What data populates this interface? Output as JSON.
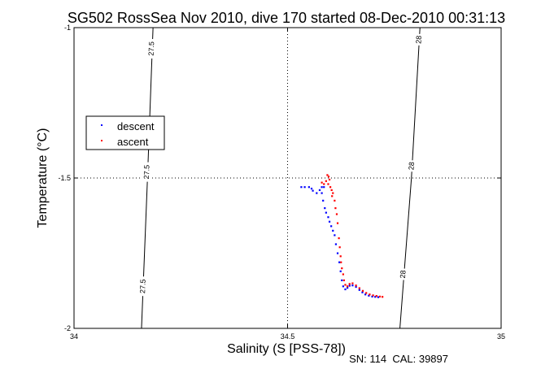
{
  "chart_data": {
    "type": "scatter",
    "title": "SG502 RossSea Nov 2010, dive 170 started 08-Dec-2010 00:31:13",
    "xlabel": "Salinity (S [PSS-78])",
    "ylabel": "Temperature (°C)",
    "xlim": [
      34,
      35
    ],
    "ylim": [
      -2,
      -1
    ],
    "x_ticks": [
      34,
      34.5,
      35
    ],
    "x_tick_labels": [
      "34",
      "34.5",
      "35"
    ],
    "y_ticks": [
      -2,
      -1.5,
      -1
    ],
    "y_tick_labels": [
      "-2",
      "-1.5",
      "-1"
    ],
    "grid": "dotted at 34.5 and -1.5",
    "legend_position": "left",
    "footnote": "SN: 114  CAL: 39897",
    "density_contours": [
      {
        "label": "27.5",
        "points": [
          [
            34.185,
            -1.0
          ],
          [
            34.172,
            -1.5
          ],
          [
            34.158,
            -2.0
          ]
        ],
        "label_positions": [
          [
            34.181,
            -1.07
          ],
          [
            34.17,
            -1.48
          ],
          [
            34.161,
            -1.86
          ]
        ]
      },
      {
        "label": "28",
        "points": [
          [
            34.81,
            -1.0
          ],
          [
            34.79,
            -1.5
          ],
          [
            34.763,
            -2.0
          ]
        ],
        "label_positions": [
          [
            34.807,
            -1.04
          ],
          [
            34.79,
            -1.46
          ],
          [
            34.77,
            -1.82
          ]
        ]
      }
    ],
    "series": [
      {
        "name": "descent",
        "color": "#0000ff",
        "points": [
          [
            34.532,
            -1.53
          ],
          [
            34.54,
            -1.53
          ],
          [
            34.55,
            -1.53
          ],
          [
            34.556,
            -1.535
          ],
          [
            34.559,
            -1.542
          ],
          [
            34.568,
            -1.55
          ],
          [
            34.575,
            -1.54
          ],
          [
            34.58,
            -1.53
          ],
          [
            34.585,
            -1.53
          ],
          [
            34.58,
            -1.55
          ],
          [
            34.583,
            -1.575
          ],
          [
            34.587,
            -1.6
          ],
          [
            34.59,
            -1.615
          ],
          [
            34.595,
            -1.63
          ],
          [
            34.598,
            -1.645
          ],
          [
            34.602,
            -1.66
          ],
          [
            34.606,
            -1.675
          ],
          [
            34.61,
            -1.69
          ],
          [
            34.613,
            -1.72
          ],
          [
            34.617,
            -1.75
          ],
          [
            34.621,
            -1.78
          ],
          [
            34.624,
            -1.81
          ],
          [
            34.627,
            -1.84
          ],
          [
            34.63,
            -1.86
          ],
          [
            34.635,
            -1.87
          ],
          [
            34.64,
            -1.865
          ],
          [
            34.645,
            -1.858
          ],
          [
            34.652,
            -1.857
          ],
          [
            34.66,
            -1.862
          ],
          [
            34.668,
            -1.872
          ],
          [
            34.675,
            -1.88
          ],
          [
            34.682,
            -1.887
          ],
          [
            34.69,
            -1.891
          ],
          [
            34.698,
            -1.894
          ],
          [
            34.705,
            -1.895
          ],
          [
            34.712,
            -1.896
          ]
        ]
      },
      {
        "name": "ascent",
        "color": "#ff0000",
        "points": [
          [
            34.593,
            -1.49
          ],
          [
            34.596,
            -1.495
          ],
          [
            34.598,
            -1.505
          ],
          [
            34.595,
            -1.52
          ],
          [
            34.59,
            -1.51
          ],
          [
            34.6,
            -1.53
          ],
          [
            34.603,
            -1.54
          ],
          [
            34.606,
            -1.55
          ],
          [
            34.604,
            -1.56
          ],
          [
            34.58,
            -1.515
          ],
          [
            34.585,
            -1.52
          ],
          [
            34.61,
            -1.575
          ],
          [
            34.612,
            -1.6
          ],
          [
            34.615,
            -1.62
          ],
          [
            34.617,
            -1.65
          ],
          [
            34.62,
            -1.7
          ],
          [
            34.622,
            -1.73
          ],
          [
            34.624,
            -1.76
          ],
          [
            34.625,
            -1.78
          ],
          [
            34.627,
            -1.8
          ],
          [
            34.63,
            -1.82
          ],
          [
            34.632,
            -1.84
          ],
          [
            34.635,
            -1.855
          ],
          [
            34.64,
            -1.86
          ],
          [
            34.645,
            -1.852
          ],
          [
            34.652,
            -1.85
          ],
          [
            34.66,
            -1.857
          ],
          [
            34.668,
            -1.866
          ],
          [
            34.676,
            -1.875
          ],
          [
            34.684,
            -1.882
          ],
          [
            34.692,
            -1.887
          ],
          [
            34.7,
            -1.89
          ],
          [
            34.708,
            -1.892
          ],
          [
            34.716,
            -1.894
          ],
          [
            34.722,
            -1.895
          ]
        ]
      }
    ]
  }
}
